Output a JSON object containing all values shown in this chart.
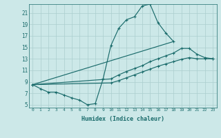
{
  "xlabel": "Humidex (Indice chaleur)",
  "xlim": [
    -0.5,
    23.5
  ],
  "ylim": [
    4.5,
    22.5
  ],
  "xticks": [
    0,
    1,
    2,
    3,
    4,
    5,
    6,
    7,
    8,
    9,
    10,
    11,
    12,
    13,
    14,
    15,
    16,
    17,
    18,
    19,
    20,
    21,
    22,
    23
  ],
  "yticks": [
    5,
    7,
    9,
    11,
    13,
    15,
    17,
    19,
    21
  ],
  "bg_color": "#cce8e8",
  "line_color": "#1a6b6b",
  "grid_color": "#aacece",
  "curve1_x": [
    0,
    1,
    2,
    3,
    4,
    5,
    6,
    7,
    8,
    9,
    10,
    11,
    12,
    13,
    14,
    15,
    16,
    17,
    18
  ],
  "curve1_y": [
    8.5,
    7.8,
    7.2,
    7.2,
    6.7,
    6.2,
    5.8,
    5.0,
    5.2,
    9.5,
    15.3,
    18.3,
    19.8,
    20.3,
    22.2,
    22.5,
    19.3,
    17.5,
    16.0
  ],
  "curve2_x": [
    0,
    10,
    11,
    12,
    13,
    14,
    15,
    16,
    17,
    18,
    19,
    20,
    21,
    22,
    23
  ],
  "curve2_y": [
    8.5,
    9.5,
    10.2,
    10.8,
    11.3,
    11.8,
    12.5,
    13.0,
    13.5,
    14.0,
    14.8,
    14.8,
    13.8,
    13.2,
    13.0
  ],
  "curve3_x": [
    0,
    10,
    11,
    12,
    13,
    14,
    15,
    16,
    17,
    18,
    19,
    20,
    21,
    22,
    23
  ],
  "curve3_y": [
    8.5,
    8.8,
    9.2,
    9.7,
    10.2,
    10.7,
    11.2,
    11.7,
    12.1,
    12.5,
    12.9,
    13.2,
    13.0,
    13.0,
    13.0
  ],
  "curve4_x": [
    0,
    18
  ],
  "curve4_y": [
    8.5,
    16.0
  ]
}
